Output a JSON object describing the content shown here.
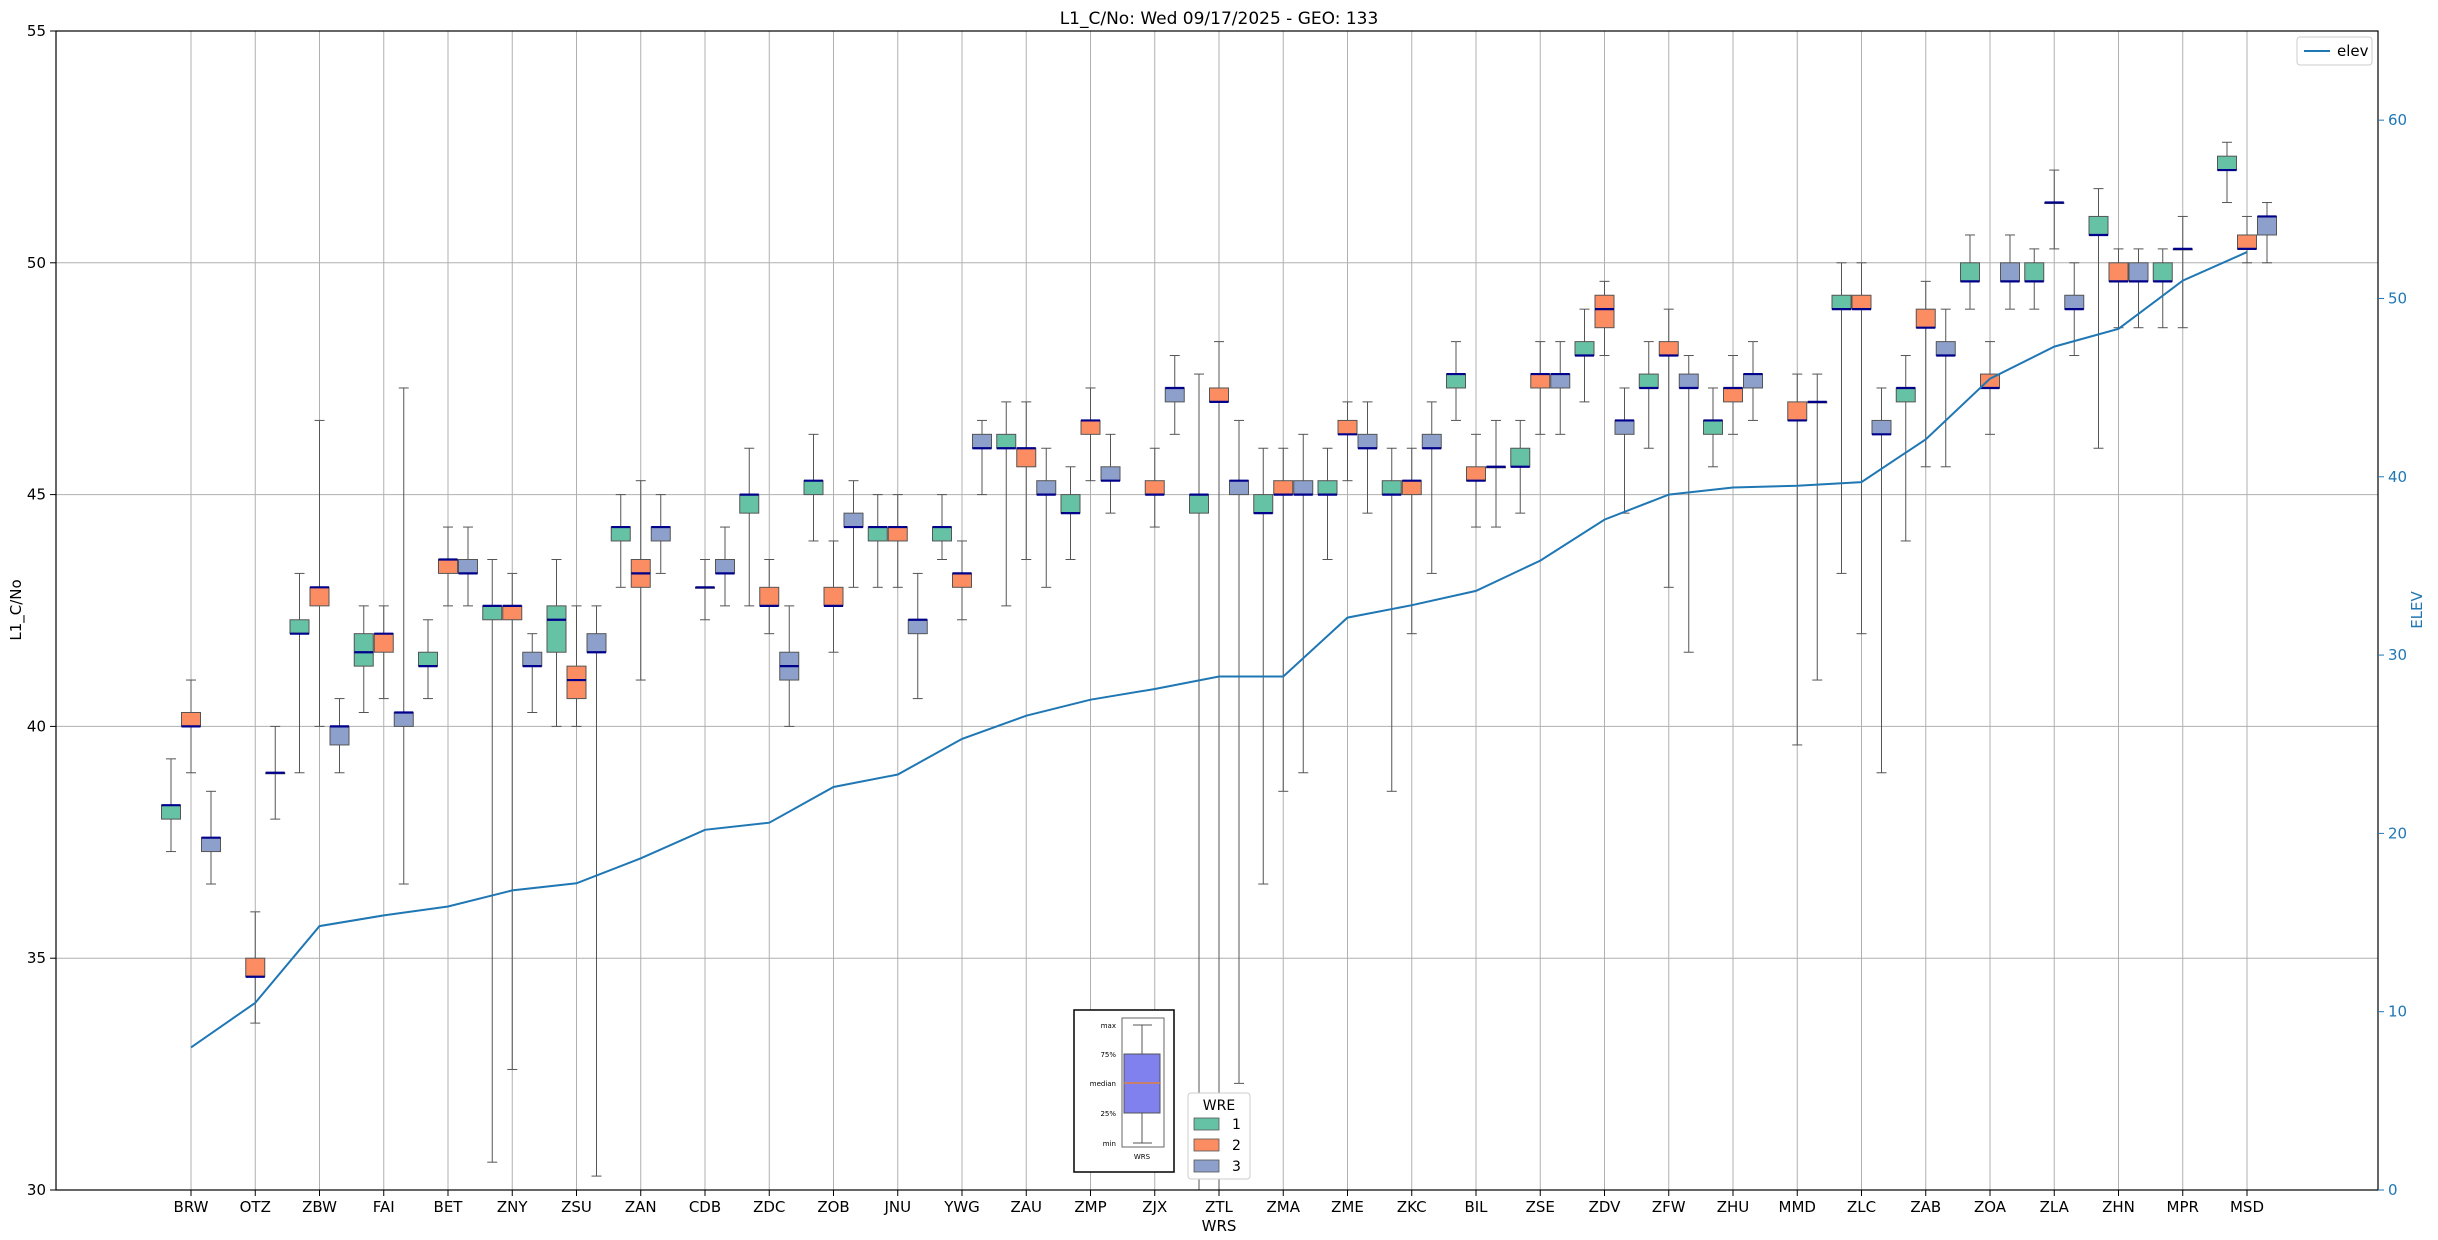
{
  "chart_data": {
    "type": "box",
    "title": "L1_C/No: Wed 09/17/2025 - GEO: 133",
    "xlabel": "WRS",
    "ylabel": "L1_C/No",
    "ylabel_right": "ELEV",
    "ylim": [
      30,
      55
    ],
    "ylim_right": [
      0,
      65
    ],
    "yticks": [
      "30",
      "35",
      "40",
      "45",
      "50",
      "55"
    ],
    "yticks_right": [
      "0",
      "10",
      "20",
      "30",
      "40",
      "50",
      "60"
    ],
    "grid": true,
    "categories": [
      "BRW",
      "OTZ",
      "ZBW",
      "FAI",
      "BET",
      "ZNY",
      "ZSU",
      "ZAN",
      "CDB",
      "ZDC",
      "ZOB",
      "JNU",
      "YWG",
      "ZAU",
      "ZMP",
      "ZJX",
      "ZTL",
      "ZMA",
      "ZME",
      "ZKC",
      "BIL",
      "ZSE",
      "ZDV",
      "ZFW",
      "ZHU",
      "MMD",
      "ZLC",
      "ZAB",
      "ZOA",
      "ZLA",
      "ZHN",
      "MPR",
      "MSD"
    ],
    "series_colors": {
      "1": "#66c2a5",
      "2": "#fc8d62",
      "3": "#8da0cb"
    },
    "median_color": "#00008b",
    "whisker_colors": {
      "normal": "#555555",
      "min_max": "#d62728"
    },
    "line_color": "#1f77b4",
    "legend": {
      "title": "WRE",
      "entries": [
        "1",
        "2",
        "3"
      ],
      "placement": "bottom-center"
    },
    "line_legend": {
      "label": "elev",
      "placement": "top-right"
    },
    "boxes": [
      {
        "station": "BRW",
        "wre": 1,
        "min": 37.3,
        "q1": 38.0,
        "median": 38.3,
        "q3": 38.3,
        "max": 39.3
      },
      {
        "station": "BRW",
        "wre": 2,
        "min": 39.0,
        "q1": 40.0,
        "median": 40.0,
        "q3": 40.3,
        "max": 41.0
      },
      {
        "station": "BRW",
        "wre": 3,
        "min": 36.6,
        "q1": 37.3,
        "median": 37.6,
        "q3": 37.6,
        "max": 38.6
      },
      {
        "station": "OTZ",
        "wre": 2,
        "min": 33.6,
        "q1": 34.6,
        "median": 34.6,
        "q3": 35.0,
        "max": 36.0
      },
      {
        "station": "OTZ",
        "wre": 3,
        "min": 38.0,
        "q1": 39.0,
        "median": 39.0,
        "q3": 39.0,
        "max": 40.0
      },
      {
        "station": "ZBW",
        "wre": 1,
        "min": 39.0,
        "q1": 42.0,
        "median": 42.0,
        "q3": 42.3,
        "max": 43.3
      },
      {
        "station": "ZBW",
        "wre": 2,
        "min": 40.0,
        "q1": 42.6,
        "median": 43.0,
        "q3": 43.0,
        "max": 46.6
      },
      {
        "station": "ZBW",
        "wre": 3,
        "min": 39.0,
        "q1": 39.6,
        "median": 40.0,
        "q3": 40.0,
        "max": 40.6
      },
      {
        "station": "FAI",
        "wre": 1,
        "min": 40.3,
        "q1": 41.3,
        "median": 41.6,
        "q3": 42.0,
        "max": 42.6
      },
      {
        "station": "FAI",
        "wre": 2,
        "min": 40.6,
        "q1": 41.6,
        "median": 42.0,
        "q3": 42.0,
        "max": 42.6
      },
      {
        "station": "FAI",
        "wre": 3,
        "min": 36.6,
        "q1": 40.0,
        "median": 40.3,
        "q3": 40.3,
        "max": 47.3
      },
      {
        "station": "BET",
        "wre": 1,
        "min": 40.6,
        "q1": 41.3,
        "median": 41.3,
        "q3": 41.6,
        "max": 42.3
      },
      {
        "station": "BET",
        "wre": 2,
        "min": 42.6,
        "q1": 43.3,
        "median": 43.6,
        "q3": 43.6,
        "max": 44.3
      },
      {
        "station": "BET",
        "wre": 3,
        "min": 42.6,
        "q1": 43.3,
        "median": 43.3,
        "q3": 43.6,
        "max": 44.3
      },
      {
        "station": "ZNY",
        "wre": 1,
        "min": 30.6,
        "q1": 42.3,
        "median": 42.6,
        "q3": 42.6,
        "max": 43.6
      },
      {
        "station": "ZNY",
        "wre": 2,
        "min": 32.6,
        "q1": 42.3,
        "median": 42.6,
        "q3": 42.6,
        "max": 43.3
      },
      {
        "station": "ZNY",
        "wre": 3,
        "min": 40.3,
        "q1": 41.3,
        "median": 41.3,
        "q3": 41.6,
        "max": 42.0
      },
      {
        "station": "ZSU",
        "wre": 1,
        "min": 40.0,
        "q1": 41.6,
        "median": 42.3,
        "q3": 42.6,
        "max": 43.6
      },
      {
        "station": "ZSU",
        "wre": 2,
        "min": 40.0,
        "q1": 40.6,
        "median": 41.0,
        "q3": 41.3,
        "max": 42.6
      },
      {
        "station": "ZSU",
        "wre": 3,
        "min": 30.3,
        "q1": 41.6,
        "median": 41.6,
        "q3": 42.0,
        "max": 42.6
      },
      {
        "station": "ZAN",
        "wre": 1,
        "min": 43.0,
        "q1": 44.0,
        "median": 44.3,
        "q3": 44.3,
        "max": 45.0
      },
      {
        "station": "ZAN",
        "wre": 2,
        "min": 41.0,
        "q1": 43.0,
        "median": 43.3,
        "q3": 43.6,
        "max": 45.3
      },
      {
        "station": "ZAN",
        "wre": 3,
        "min": 43.3,
        "q1": 44.0,
        "median": 44.3,
        "q3": 44.3,
        "max": 45.0
      },
      {
        "station": "CDB",
        "wre": 2,
        "min": 42.3,
        "q1": 43.0,
        "median": 43.0,
        "q3": 43.0,
        "max": 43.6
      },
      {
        "station": "CDB",
        "wre": 3,
        "min": 42.6,
        "q1": 43.3,
        "median": 43.3,
        "q3": 43.6,
        "max": 44.3
      },
      {
        "station": "ZDC",
        "wre": 1,
        "min": 42.6,
        "q1": 44.6,
        "median": 45.0,
        "q3": 45.0,
        "max": 46.0
      },
      {
        "station": "ZDC",
        "wre": 2,
        "min": 42.0,
        "q1": 42.6,
        "median": 42.6,
        "q3": 43.0,
        "max": 43.6
      },
      {
        "station": "ZDC",
        "wre": 3,
        "min": 40.0,
        "q1": 41.0,
        "median": 41.3,
        "q3": 41.6,
        "max": 42.6
      },
      {
        "station": "ZOB",
        "wre": 1,
        "min": 44.0,
        "q1": 45.0,
        "median": 45.3,
        "q3": 45.3,
        "max": 46.3
      },
      {
        "station": "ZOB",
        "wre": 2,
        "min": 41.6,
        "q1": 42.6,
        "median": 42.6,
        "q3": 43.0,
        "max": 44.0
      },
      {
        "station": "ZOB",
        "wre": 3,
        "min": 43.0,
        "q1": 44.3,
        "median": 44.3,
        "q3": 44.6,
        "max": 45.3
      },
      {
        "station": "JNU",
        "wre": 1,
        "min": 43.0,
        "q1": 44.0,
        "median": 44.3,
        "q3": 44.3,
        "max": 45.0
      },
      {
        "station": "JNU",
        "wre": 2,
        "min": 43.0,
        "q1": 44.0,
        "median": 44.3,
        "q3": 44.3,
        "max": 45.0
      },
      {
        "station": "JNU",
        "wre": 3,
        "min": 40.6,
        "q1": 42.0,
        "median": 42.3,
        "q3": 42.3,
        "max": 43.3
      },
      {
        "station": "YWG",
        "wre": 1,
        "min": 43.6,
        "q1": 44.0,
        "median": 44.3,
        "q3": 44.3,
        "max": 45.0
      },
      {
        "station": "YWG",
        "wre": 2,
        "min": 42.3,
        "q1": 43.0,
        "median": 43.3,
        "q3": 43.3,
        "max": 44.0
      },
      {
        "station": "YWG",
        "wre": 3,
        "min": 45.0,
        "q1": 46.0,
        "median": 46.0,
        "q3": 46.3,
        "max": 46.6
      },
      {
        "station": "ZAU",
        "wre": 1,
        "min": 42.6,
        "q1": 46.0,
        "median": 46.0,
        "q3": 46.3,
        "max": 47.0
      },
      {
        "station": "ZAU",
        "wre": 2,
        "min": 43.6,
        "q1": 45.6,
        "median": 46.0,
        "q3": 46.0,
        "max": 47.0
      },
      {
        "station": "ZAU",
        "wre": 3,
        "min": 43.0,
        "q1": 45.0,
        "median": 45.0,
        "q3": 45.3,
        "max": 46.0
      },
      {
        "station": "ZMP",
        "wre": 1,
        "min": 43.6,
        "q1": 44.6,
        "median": 44.6,
        "q3": 45.0,
        "max": 45.6
      },
      {
        "station": "ZMP",
        "wre": 2,
        "min": 45.3,
        "q1": 46.3,
        "median": 46.6,
        "q3": 46.6,
        "max": 47.3
      },
      {
        "station": "ZMP",
        "wre": 3,
        "min": 44.6,
        "q1": 45.3,
        "median": 45.3,
        "q3": 45.6,
        "max": 46.3
      },
      {
        "station": "ZJX",
        "wre": 2,
        "min": 44.3,
        "q1": 45.0,
        "median": 45.0,
        "q3": 45.3,
        "max": 46.0
      },
      {
        "station": "ZJX",
        "wre": 3,
        "min": 46.3,
        "q1": 47.0,
        "median": 47.3,
        "q3": 47.3,
        "max": 48.0
      },
      {
        "station": "ZTL",
        "wre": 1,
        "min": 30.0,
        "q1": 44.6,
        "median": 45.0,
        "q3": 45.0,
        "max": 47.6
      },
      {
        "station": "ZTL",
        "wre": 2,
        "min": 30.0,
        "q1": 47.0,
        "median": 47.0,
        "q3": 47.3,
        "max": 48.3
      },
      {
        "station": "ZTL",
        "wre": 3,
        "min": 32.3,
        "q1": 45.0,
        "median": 45.3,
        "q3": 45.3,
        "max": 46.6
      },
      {
        "station": "ZMA",
        "wre": 1,
        "min": 36.6,
        "q1": 44.6,
        "median": 44.6,
        "q3": 45.0,
        "max": 46.0
      },
      {
        "station": "ZMA",
        "wre": 2,
        "min": 38.6,
        "q1": 45.0,
        "median": 45.0,
        "q3": 45.3,
        "max": 46.0
      },
      {
        "station": "ZMA",
        "wre": 3,
        "min": 39.0,
        "q1": 45.0,
        "median": 45.0,
        "q3": 45.3,
        "max": 46.3
      },
      {
        "station": "ZME",
        "wre": 1,
        "min": 43.6,
        "q1": 45.0,
        "median": 45.0,
        "q3": 45.3,
        "max": 46.0
      },
      {
        "station": "ZME",
        "wre": 2,
        "min": 45.3,
        "q1": 46.3,
        "median": 46.3,
        "q3": 46.6,
        "max": 47.0
      },
      {
        "station": "ZME",
        "wre": 3,
        "min": 44.6,
        "q1": 46.0,
        "median": 46.0,
        "q3": 46.3,
        "max": 47.0
      },
      {
        "station": "ZKC",
        "wre": 1,
        "min": 38.6,
        "q1": 45.0,
        "median": 45.0,
        "q3": 45.3,
        "max": 46.0
      },
      {
        "station": "ZKC",
        "wre": 2,
        "min": 42.0,
        "q1": 45.0,
        "median": 45.3,
        "q3": 45.3,
        "max": 46.0
      },
      {
        "station": "ZKC",
        "wre": 3,
        "min": 43.3,
        "q1": 46.0,
        "median": 46.0,
        "q3": 46.3,
        "max": 47.0
      },
      {
        "station": "BIL",
        "wre": 1,
        "min": 46.6,
        "q1": 47.3,
        "median": 47.6,
        "q3": 47.6,
        "max": 48.3
      },
      {
        "station": "BIL",
        "wre": 2,
        "min": 44.3,
        "q1": 45.3,
        "median": 45.3,
        "q3": 45.6,
        "max": 46.3
      },
      {
        "station": "BIL",
        "wre": 3,
        "min": 44.3,
        "q1": 45.6,
        "median": 45.6,
        "q3": 45.6,
        "max": 46.6
      },
      {
        "station": "ZSE",
        "wre": 1,
        "min": 44.6,
        "q1": 45.6,
        "median": 45.6,
        "q3": 46.0,
        "max": 46.6
      },
      {
        "station": "ZSE",
        "wre": 2,
        "min": 46.3,
        "q1": 47.3,
        "median": 47.6,
        "q3": 47.6,
        "max": 48.3
      },
      {
        "station": "ZSE",
        "wre": 3,
        "min": 46.3,
        "q1": 47.3,
        "median": 47.6,
        "q3": 47.6,
        "max": 48.3
      },
      {
        "station": "ZDV",
        "wre": 1,
        "min": 47.0,
        "q1": 48.0,
        "median": 48.0,
        "q3": 48.3,
        "max": 49.0
      },
      {
        "station": "ZDV",
        "wre": 2,
        "min": 48.0,
        "q1": 48.6,
        "median": 49.0,
        "q3": 49.3,
        "max": 49.6
      },
      {
        "station": "ZDV",
        "wre": 3,
        "min": 44.6,
        "q1": 46.3,
        "median": 46.6,
        "q3": 46.6,
        "max": 47.3
      },
      {
        "station": "ZFW",
        "wre": 1,
        "min": 46.0,
        "q1": 47.3,
        "median": 47.3,
        "q3": 47.6,
        "max": 48.3
      },
      {
        "station": "ZFW",
        "wre": 2,
        "min": 43.0,
        "q1": 48.0,
        "median": 48.0,
        "q3": 48.3,
        "max": 49.0
      },
      {
        "station": "ZFW",
        "wre": 3,
        "min": 41.6,
        "q1": 47.3,
        "median": 47.3,
        "q3": 47.6,
        "max": 48.0
      },
      {
        "station": "ZHU",
        "wre": 1,
        "min": 45.6,
        "q1": 46.3,
        "median": 46.6,
        "q3": 46.6,
        "max": 47.3
      },
      {
        "station": "ZHU",
        "wre": 2,
        "min": 46.3,
        "q1": 47.0,
        "median": 47.3,
        "q3": 47.3,
        "max": 48.0
      },
      {
        "station": "ZHU",
        "wre": 3,
        "min": 46.6,
        "q1": 47.3,
        "median": 47.6,
        "q3": 47.6,
        "max": 48.3
      },
      {
        "station": "MMD",
        "wre": 2,
        "min": 39.6,
        "q1": 46.6,
        "median": 46.6,
        "q3": 47.0,
        "max": 47.6
      },
      {
        "station": "MMD",
        "wre": 3,
        "min": 41.0,
        "q1": 47.0,
        "median": 47.0,
        "q3": 47.0,
        "max": 47.6
      },
      {
        "station": "ZLC",
        "wre": 1,
        "min": 43.3,
        "q1": 49.0,
        "median": 49.0,
        "q3": 49.3,
        "max": 50.0
      },
      {
        "station": "ZLC",
        "wre": 2,
        "min": 42.0,
        "q1": 49.0,
        "median": 49.0,
        "q3": 49.3,
        "max": 50.0
      },
      {
        "station": "ZLC",
        "wre": 3,
        "min": 39.0,
        "q1": 46.3,
        "median": 46.3,
        "q3": 46.6,
        "max": 47.3
      },
      {
        "station": "ZAB",
        "wre": 1,
        "min": 44.0,
        "q1": 47.0,
        "median": 47.3,
        "q3": 47.3,
        "max": 48.0
      },
      {
        "station": "ZAB",
        "wre": 2,
        "min": 45.6,
        "q1": 48.6,
        "median": 48.6,
        "q3": 49.0,
        "max": 49.6
      },
      {
        "station": "ZAB",
        "wre": 3,
        "min": 45.6,
        "q1": 48.0,
        "median": 48.0,
        "q3": 48.3,
        "max": 49.0
      },
      {
        "station": "ZOA",
        "wre": 1,
        "min": 49.0,
        "q1": 49.6,
        "median": 49.6,
        "q3": 50.0,
        "max": 50.6
      },
      {
        "station": "ZOA",
        "wre": 2,
        "min": 46.3,
        "q1": 47.3,
        "median": 47.3,
        "q3": 47.6,
        "max": 48.3
      },
      {
        "station": "ZOA",
        "wre": 3,
        "min": 49.0,
        "q1": 49.6,
        "median": 49.6,
        "q3": 50.0,
        "max": 50.6
      },
      {
        "station": "ZLA",
        "wre": 1,
        "min": 49.0,
        "q1": 49.6,
        "median": 49.6,
        "q3": 50.0,
        "max": 50.3
      },
      {
        "station": "ZLA",
        "wre": 2,
        "min": 50.3,
        "q1": 51.3,
        "median": 51.3,
        "q3": 51.3,
        "max": 52.0
      },
      {
        "station": "ZLA",
        "wre": 3,
        "min": 48.0,
        "q1": 49.0,
        "median": 49.0,
        "q3": 49.3,
        "max": 50.0
      },
      {
        "station": "ZHN",
        "wre": 1,
        "min": 46.0,
        "q1": 50.6,
        "median": 50.6,
        "q3": 51.0,
        "max": 51.6
      },
      {
        "station": "ZHN",
        "wre": 2,
        "min": 48.6,
        "q1": 49.6,
        "median": 49.6,
        "q3": 50.0,
        "max": 50.3
      },
      {
        "station": "ZHN",
        "wre": 3,
        "min": 48.6,
        "q1": 49.6,
        "median": 49.6,
        "q3": 50.0,
        "max": 50.3
      },
      {
        "station": "MPR",
        "wre": 1,
        "min": 48.6,
        "q1": 49.6,
        "median": 49.6,
        "q3": 50.0,
        "max": 50.3
      },
      {
        "station": "MPR",
        "wre": 2,
        "min": 48.6,
        "q1": 50.3,
        "median": 50.3,
        "q3": 50.3,
        "max": 51.0
      },
      {
        "station": "MSD",
        "wre": 1,
        "min": 51.3,
        "q1": 52.0,
        "median": 52.0,
        "q3": 52.3,
        "max": 52.6
      },
      {
        "station": "MSD",
        "wre": 2,
        "min": 50.0,
        "q1": 50.3,
        "median": 50.3,
        "q3": 50.6,
        "max": 51.0
      },
      {
        "station": "MSD",
        "wre": 3,
        "min": 50.0,
        "q1": 50.6,
        "median": 51.0,
        "q3": 51.0,
        "max": 51.3
      }
    ],
    "elev_line": {
      "name": "elev",
      "values": [
        8.0,
        10.5,
        14.8,
        15.4,
        15.9,
        16.8,
        17.2,
        18.6,
        20.2,
        20.6,
        22.6,
        23.3,
        25.3,
        26.6,
        27.5,
        28.1,
        28.8,
        28.8,
        32.1,
        32.8,
        33.6,
        35.3,
        37.6,
        39.0,
        39.4,
        39.5,
        39.7,
        42.1,
        45.5,
        47.3,
        48.3,
        51.0,
        52.6
      ]
    }
  },
  "inset": {
    "labels": [
      "max",
      "75%",
      "median",
      "25%",
      "min"
    ],
    "xlabel": "WRS",
    "box_color": "#8080ee"
  }
}
